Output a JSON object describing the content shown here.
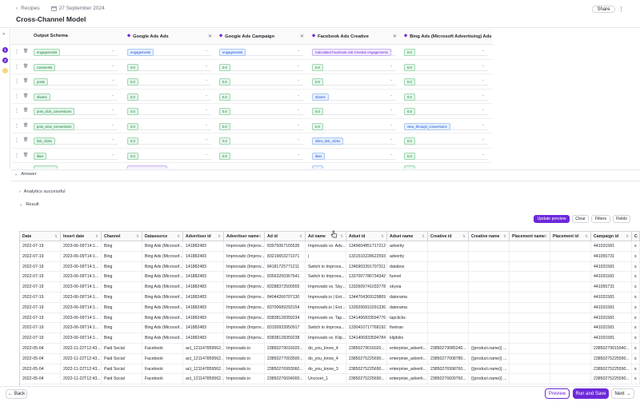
{
  "header": {
    "breadcrumb": "Recipes",
    "date": "27 September 2024",
    "title": "Cross-Channel Model",
    "share_label": "Share",
    "more_label": "⋮"
  },
  "rail": {
    "expand_label": "»",
    "steps": [
      "1",
      "2",
      ""
    ]
  },
  "mapping": {
    "columns": [
      {
        "title": "Output Schema"
      },
      {
        "title": "Google Ads Ads"
      },
      {
        "title": "Google Ads Campaign"
      },
      {
        "title": "Facebook Ads Creative"
      },
      {
        "title": "Bing Ads (Microsoft Advertising) Ads"
      }
    ],
    "rows": [
      {
        "schema": "engagements",
        "c1": "engagements",
        "c2": "engagements",
        "c3": "Calculated Facebook Ads Creative engagements",
        "c4": "0.0"
      },
      {
        "schema": "comments",
        "c1": "0.0",
        "c2": "0.0",
        "c3": "0.0",
        "c4": "0.0"
      },
      {
        "schema": "posts",
        "c1": "0.0",
        "c2": "0.0",
        "c3": "0.0",
        "c4": "0.0"
      },
      {
        "schema": "shares",
        "c1": "0.0",
        "c2": "0.0",
        "c3": "shares",
        "c4": "0.0"
      },
      {
        "schema": "post_click_conversions",
        "c1": "0.0",
        "c2": "0.0",
        "c3": "0.0",
        "c4": "0.0"
      },
      {
        "schema": "post_view_conversions",
        "c1": "0.0",
        "c2": "0.0",
        "c3": "0.0",
        "c4": "view_through_conversions"
      },
      {
        "schema": "link_clicks",
        "c1": "0.0",
        "c2": "0.0",
        "c3": "inline_link_clicks",
        "c4": "0.0"
      },
      {
        "schema": "likes",
        "c1": "0.0",
        "c2": "0.0",
        "c3": "likes",
        "c4": "0.0"
      }
    ]
  },
  "answer": {
    "label": "Answer",
    "analytics": "Analytics successful",
    "result": "Result"
  },
  "toolbar": {
    "update_preview": "Update preview",
    "clear": "Clear",
    "filters": "Filters",
    "fields": "Fields"
  },
  "table": {
    "headers": [
      "Date",
      "Insert date",
      "Channel",
      "Datasource",
      "Advertiser id",
      "Advertiser name",
      "Ad id",
      "Ad name",
      "Adset id",
      "Adset name",
      "Creative id",
      "Creative name",
      "Placement name",
      "Placement id",
      "Campaign id",
      "C"
    ],
    "rows": [
      [
        "2022-07-19",
        "2023-06-09T14:1...",
        "Bing",
        "Bing Ads (Microsof...",
        "141882483",
        "Improvado (Improv...",
        "83975067165535",
        "Improvado vs. Adv...",
        "1349604851717212",
        "adverity",
        "",
        "",
        "",
        "",
        "441031581",
        "s"
      ],
      [
        "2022-07-19",
        "2023-06-09T14:1...",
        "Bing",
        "Bing Ads (Microsof...",
        "141882483",
        "Improvado (Improv...",
        "83219653271071",
        "|",
        "1331510228622593",
        "adverity",
        "",
        "",
        "",
        "",
        "441055731",
        "s"
      ],
      [
        "2022-07-19",
        "2023-06-09T14:1...",
        "Bing",
        "Bing Ads (Microsof...",
        "141882483",
        "Improvado (Improv...",
        "84181725771211",
        "Switch to Improva...",
        "1346903391707311",
        "databox",
        "",
        "",
        "",
        "",
        "441031581",
        "s"
      ],
      [
        "2022-07-19",
        "2023-06-09T14:1...",
        "Bing",
        "Bing Ads (Microsof...",
        "141882483",
        "Improvado (Improv...",
        "83563250367541",
        "Switch to Improva...",
        "1337007786734342",
        "funnel",
        "",
        "",
        "",
        "",
        "441031581",
        "s"
      ],
      [
        "2022-07-19",
        "2023-06-09T14:1...",
        "Bing",
        "Bing Ads (Microsof...",
        "141882483",
        "Improvado (Improv...",
        "83288372500555",
        "Improvado vs. Sky...",
        "1332609741033778",
        "skyvia",
        "",
        "",
        "",
        "",
        "441055731",
        "s"
      ],
      [
        "2022-07-19",
        "2023-06-09T14:1...",
        "Bing",
        "Bing Ads (Microsof...",
        "141882483",
        "Improvado (Improv...",
        "84044266707130",
        "Improvado.io | Ent...",
        "1344704369129869",
        "datorama",
        "",
        "",
        "",
        "",
        "441031581",
        "s"
      ],
      [
        "2022-07-19",
        "2023-06-09T14:1...",
        "Bing",
        "Bing Ads (Microsof...",
        "141882483",
        "Improvado (Improv...",
        "83700689293154",
        "Improvado.io | Ent...",
        "1339206810291336",
        "datorama",
        "",
        "",
        "",
        "",
        "441031581",
        "s"
      ],
      [
        "2022-07-19",
        "2023-06-09T14:1...",
        "Bing",
        "Bing Ads (Microsof...",
        "141882483",
        "Improvado (Improv...",
        "83838128359234",
        "Improvado vs. Tap...",
        "1341406833594776",
        "tapclicks",
        "",
        "",
        "",
        "",
        "441031581",
        "s"
      ],
      [
        "2022-07-19",
        "2023-06-09T14:1...",
        "Bing",
        "Bing Ads (Microsof...",
        "141882483",
        "Improvado (Improv...",
        "83150933950917",
        "Switch to Improva...",
        "1330410717768192",
        "fivetran",
        "",
        "",
        "",
        "",
        "441031581",
        "s"
      ],
      [
        "2022-07-19",
        "2023-06-09T14:1...",
        "Bing",
        "Bing Ads (Microsof...",
        "141882483",
        "Improvado (Improv...",
        "83838128359238",
        "Improvado vs. Klip...",
        "1341406833594784",
        "klipfolio",
        "",
        "",
        "",
        "",
        "441031581",
        "s"
      ],
      [
        "2022-05-04",
        "2022-11-22T12:43...",
        "Paid Social",
        "Facebook",
        "act_121147859562...",
        "Improvado.io",
        "23850279016020...",
        "do_you_know_4",
        "23850279016020...",
        "enterprise_adverti...",
        "23850279085240...",
        "{{product.name}} ...",
        "",
        "",
        "23850279015940...",
        "s"
      ],
      [
        "2022-05-04",
        "2022-11-22T12:43...",
        "Paid Social",
        "Facebook",
        "act_121147859562...",
        "Improvado.io",
        "23850277003500...",
        "do_you_know_4",
        "23850275225690...",
        "enterprise_adverti...",
        "23850277008780...",
        "{{product.name}} ...",
        "",
        "",
        "23850275225590...",
        "s"
      ],
      [
        "2022-05-04",
        "2022-11-22T12:43...",
        "Paid Social",
        "Facebook",
        "act_121147859562...",
        "Improvado.io",
        "23850276993060...",
        "do_you_know_3",
        "23850275225690...",
        "enterprise_adverti...",
        "23850276998760...",
        "{{product.name}} ...",
        "",
        "",
        "23850275225590...",
        "s"
      ],
      [
        "2022-05-04",
        "2022-11-22T12:43...",
        "Paid Social",
        "Facebook",
        "act_121147859562...",
        "Improvado.io",
        "23850276604000...",
        "Uncover_1",
        "23850275225690...",
        "enterprise_adverti...",
        "23850276609760...",
        "{{product.name}} ...",
        "",
        "",
        "23850275225590...",
        "s"
      ]
    ]
  },
  "footer": {
    "back": "Back",
    "preview": "Preview",
    "run_and_save": "Run and Save",
    "next": "Next"
  },
  "colors": {
    "primary": "#6d28d9",
    "green_pill": "#15803d",
    "blue_pill": "#1d4ed8",
    "purple_pill": "#6d28d9"
  }
}
